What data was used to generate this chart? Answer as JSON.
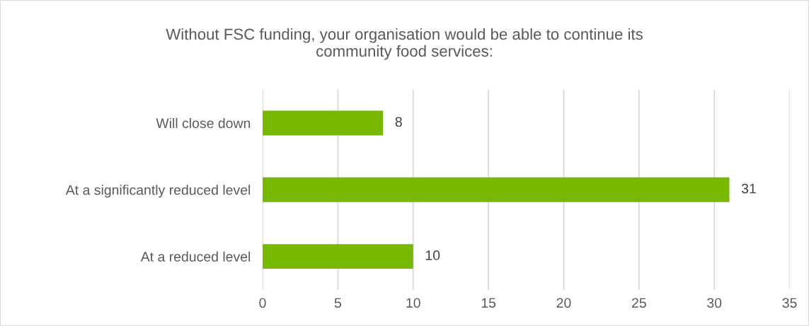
{
  "chart_data": {
    "type": "bar",
    "orientation": "horizontal",
    "title": "Without FSC funding, your organisation would be able to continue its\ncommunity food services:",
    "categories": [
      "Will close down",
      "At a significantly reduced level",
      "At a reduced level"
    ],
    "values": [
      8,
      31,
      10
    ],
    "color": "#76b900",
    "xlim": [
      0,
      35
    ],
    "xticks": [
      0,
      5,
      10,
      15,
      20,
      25,
      30,
      35
    ],
    "grid": "x",
    "data_labels": true
  }
}
